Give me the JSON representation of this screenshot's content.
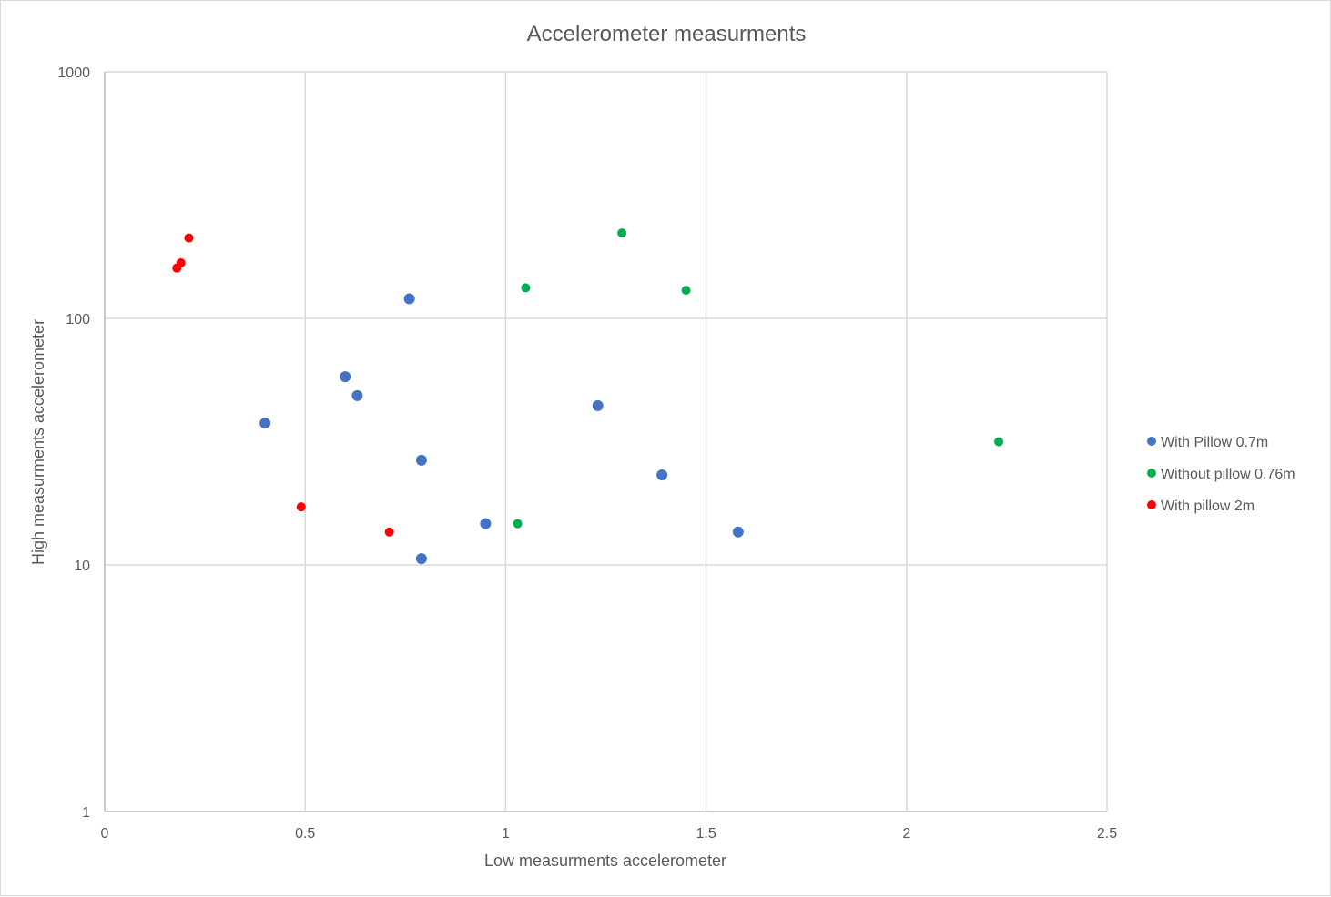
{
  "chart_data": {
    "type": "scatter",
    "title": "Accelerometer measurments",
    "xlabel": "Low measurments accelerometer",
    "ylabel": "High measurments accelerometer",
    "xlim": [
      0,
      2.5
    ],
    "ylim": [
      1,
      1000
    ],
    "y_scale": "log",
    "x_ticks": [
      "0",
      "0.5",
      "1",
      "1.5",
      "2",
      "2.5"
    ],
    "y_ticks": [
      "1",
      "10",
      "100",
      "1000"
    ],
    "grid": true,
    "legend_position": "right",
    "series": [
      {
        "name": "With Pillow 0.7m",
        "color": "#4472C4",
        "points": [
          [
            0.4,
            37.6
          ],
          [
            0.6,
            58
          ],
          [
            0.63,
            48.6
          ],
          [
            0.76,
            120
          ],
          [
            0.79,
            26.6
          ],
          [
            0.79,
            10.6
          ],
          [
            0.95,
            14.7
          ],
          [
            1.23,
            44.3
          ],
          [
            1.39,
            23.2
          ],
          [
            1.58,
            13.6
          ]
        ]
      },
      {
        "name": "Without pillow 0.76m",
        "color": "#00B050",
        "points": [
          [
            1.03,
            14.7
          ],
          [
            1.05,
            133
          ],
          [
            1.29,
            222
          ],
          [
            1.45,
            130
          ],
          [
            2.23,
            31.6
          ]
        ]
      },
      {
        "name": "With pillow 2m",
        "color": "#FF0000",
        "points": [
          [
            0.18,
            160
          ],
          [
            0.19,
            168
          ],
          [
            0.21,
            212
          ],
          [
            0.49,
            17.2
          ],
          [
            0.71,
            13.6
          ]
        ]
      }
    ]
  }
}
